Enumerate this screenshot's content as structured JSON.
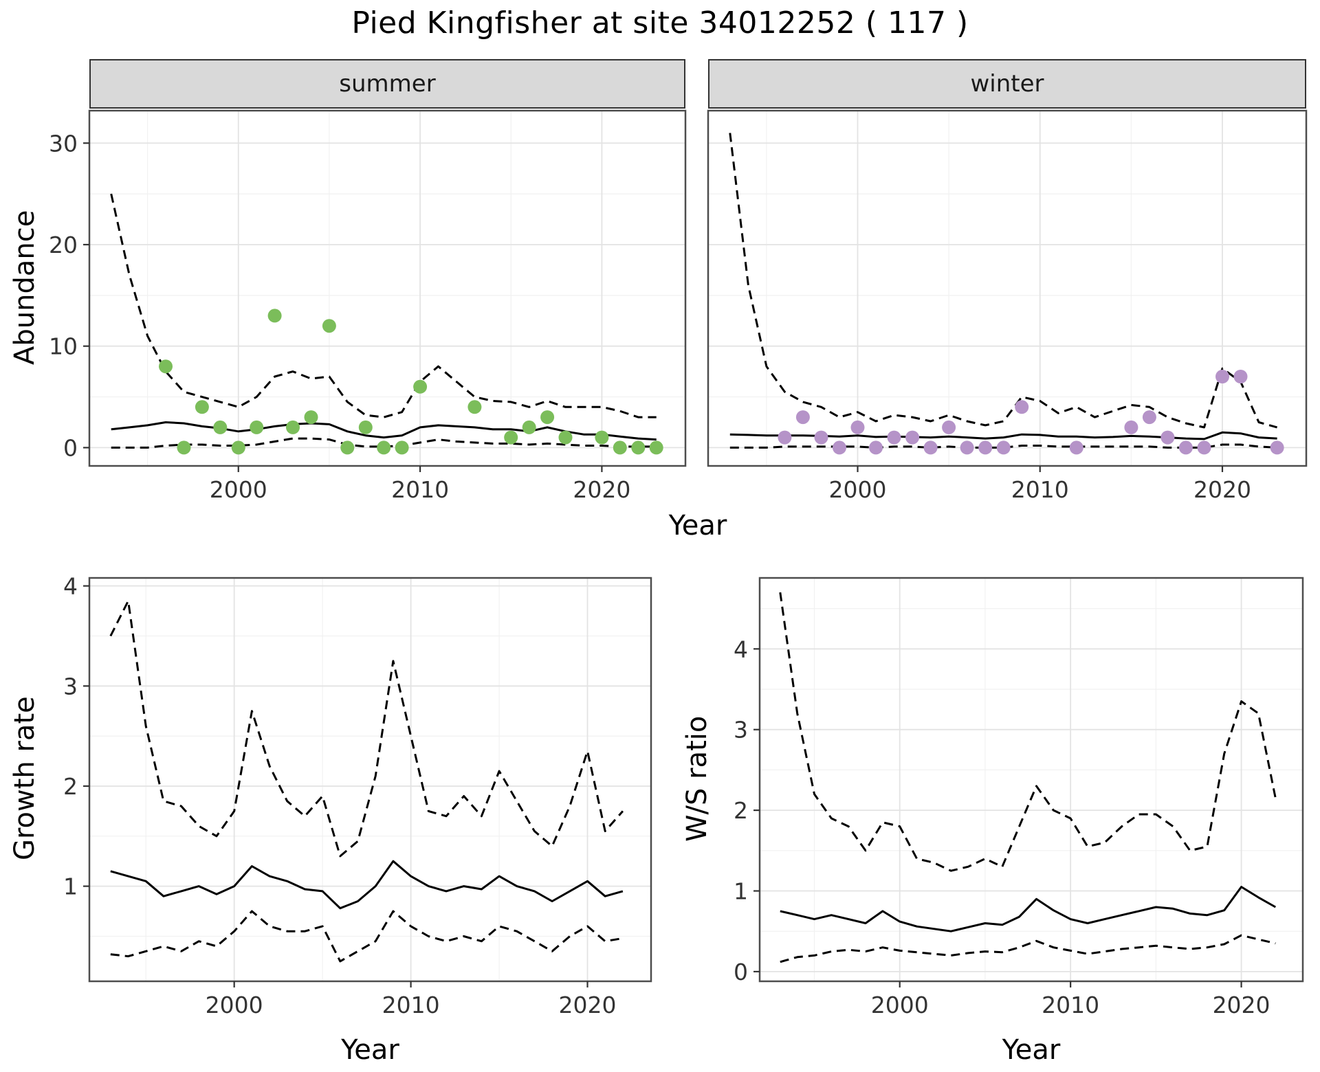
{
  "title": "Pied Kingfisher at site 34012252 ( 117 )",
  "colors": {
    "summer_points": "#7bbd5a",
    "winter_points": "#b593c8",
    "line": "#000000",
    "strip_background": "#d9d9d9",
    "grid_major": "#e3e3e3",
    "grid_minor": "#f1f1f1",
    "panel_border": "#4d4d4d",
    "background": "#ffffff"
  },
  "chart_data": [
    {
      "id": "abundance-summer",
      "type": "line+scatter",
      "facet": "summer",
      "xlabel": "Year",
      "ylabel": "Abundance",
      "xlim": [
        1991.8,
        2024.6
      ],
      "ylim": [
        -1.8,
        33.2
      ],
      "xticks": [
        2000,
        2010,
        2020
      ],
      "yticks": [
        0,
        10,
        20,
        30
      ],
      "xminor": [
        1995,
        2005,
        2015
      ],
      "yminor": [
        5,
        15,
        25
      ],
      "x": [
        1993,
        1994,
        1995,
        1996,
        1997,
        1998,
        1999,
        2000,
        2001,
        2002,
        2003,
        2004,
        2005,
        2006,
        2007,
        2008,
        2009,
        2010,
        2011,
        2012,
        2013,
        2014,
        2015,
        2016,
        2017,
        2018,
        2019,
        2020,
        2021,
        2022,
        2023
      ],
      "series": [
        {
          "name": "upper-ci",
          "style": "dashed",
          "y": [
            25,
            17,
            11,
            7.5,
            5.5,
            5,
            4.5,
            4,
            5,
            7,
            7.5,
            6.8,
            7,
            4.5,
            3.2,
            3,
            3.5,
            6.5,
            8,
            6.5,
            5,
            4.6,
            4.5,
            4,
            4.6,
            4,
            4,
            4,
            3.6,
            3,
            3
          ]
        },
        {
          "name": "fit",
          "style": "solid",
          "y": [
            1.8,
            2.0,
            2.2,
            2.5,
            2.4,
            2.1,
            1.9,
            1.6,
            1.8,
            2.1,
            2.3,
            2.4,
            2.3,
            1.6,
            1.2,
            1.0,
            1.2,
            2.0,
            2.2,
            2.1,
            2.0,
            1.8,
            1.8,
            1.6,
            2.0,
            1.6,
            1.3,
            1.3,
            1.1,
            0.9,
            0.8
          ]
        },
        {
          "name": "lower-ci",
          "style": "dashed",
          "y": [
            0,
            0,
            0,
            0.2,
            0.3,
            0.3,
            0.2,
            0.2,
            0.3,
            0.6,
            0.9,
            0.9,
            0.8,
            0.3,
            0.1,
            0.1,
            0.2,
            0.5,
            0.8,
            0.6,
            0.5,
            0.4,
            0.4,
            0.3,
            0.4,
            0.3,
            0.2,
            0.2,
            0.1,
            0.1,
            0.1
          ]
        },
        {
          "name": "observed-counts",
          "style": "points",
          "color": "#7bbd5a",
          "x": [
            1996,
            1997,
            1998,
            1999,
            2000,
            2001,
            2002,
            2003,
            2004,
            2005,
            2006,
            2007,
            2008,
            2009,
            2010,
            2013,
            2015,
            2016,
            2017,
            2018,
            2020,
            2021,
            2022,
            2023
          ],
          "y": [
            8,
            0,
            4,
            2,
            0,
            2,
            13,
            2,
            3,
            12,
            0,
            2,
            0,
            0,
            6,
            4,
            1,
            2,
            3,
            1,
            1,
            0,
            0,
            0
          ]
        }
      ]
    },
    {
      "id": "abundance-winter",
      "type": "line+scatter",
      "facet": "winter",
      "xlabel": "Year",
      "ylabel": "Abundance",
      "xlim": [
        1991.8,
        2024.6
      ],
      "ylim": [
        -1.8,
        33.2
      ],
      "xticks": [
        2000,
        2010,
        2020
      ],
      "yticks": [
        0,
        10,
        20,
        30
      ],
      "xminor": [
        1995,
        2005,
        2015
      ],
      "yminor": [
        5,
        15,
        25
      ],
      "x": [
        1993,
        1994,
        1995,
        1996,
        1997,
        1998,
        1999,
        2000,
        2001,
        2002,
        2003,
        2004,
        2005,
        2006,
        2007,
        2008,
        2009,
        2010,
        2011,
        2012,
        2013,
        2014,
        2015,
        2016,
        2017,
        2018,
        2019,
        2020,
        2021,
        2022,
        2023
      ],
      "series": [
        {
          "name": "upper-ci",
          "style": "dashed",
          "y": [
            31,
            16,
            8,
            5.5,
            4.5,
            4,
            3,
            3.5,
            2.6,
            3.2,
            3,
            2.6,
            3.2,
            2.6,
            2.2,
            2.6,
            5,
            4.6,
            3.4,
            4,
            3,
            3.6,
            4.2,
            4,
            3,
            2.4,
            2,
            7.8,
            6.5,
            2.5,
            2
          ]
        },
        {
          "name": "fit",
          "style": "solid",
          "y": [
            1.3,
            1.25,
            1.2,
            1.2,
            1.2,
            1.15,
            1.1,
            1.2,
            1.05,
            1.1,
            1.05,
            1.0,
            1.1,
            1.0,
            0.9,
            1.0,
            1.3,
            1.25,
            1.1,
            1.1,
            1.0,
            1.05,
            1.15,
            1.1,
            1.0,
            0.9,
            0.85,
            1.5,
            1.4,
            1.0,
            0.9
          ]
        },
        {
          "name": "lower-ci",
          "style": "dashed",
          "y": [
            0,
            0,
            0,
            0.1,
            0.1,
            0.1,
            0.1,
            0.1,
            0,
            0.1,
            0.1,
            0,
            0.1,
            0,
            0,
            0,
            0.2,
            0.2,
            0.1,
            0.1,
            0.1,
            0.1,
            0.1,
            0.1,
            0,
            0,
            0,
            0.3,
            0.3,
            0.1,
            0
          ]
        },
        {
          "name": "observed-counts",
          "style": "points",
          "color": "#b593c8",
          "x": [
            1996,
            1997,
            1998,
            1999,
            2000,
            2001,
            2002,
            2003,
            2004,
            2005,
            2006,
            2007,
            2008,
            2009,
            2012,
            2015,
            2016,
            2017,
            2018,
            2019,
            2020,
            2021,
            2023
          ],
          "y": [
            1,
            3,
            1,
            0,
            2,
            0,
            1,
            1,
            0,
            2,
            0,
            0,
            0,
            4,
            0,
            2,
            3,
            1,
            0,
            0,
            7,
            7,
            0
          ]
        }
      ]
    },
    {
      "id": "growth-rate",
      "type": "line",
      "facet": "",
      "xlabel": "Year",
      "ylabel": "Growth rate",
      "xlim": [
        1991.8,
        2023.6
      ],
      "ylim": [
        0.05,
        4.08
      ],
      "xticks": [
        2000,
        2010,
        2020
      ],
      "yticks": [
        1,
        2,
        3,
        4
      ],
      "xminor": [
        1995,
        2005,
        2015
      ],
      "yminor": [
        0.5,
        1.5,
        2.5,
        3.5
      ],
      "x": [
        1993,
        1994,
        1995,
        1996,
        1997,
        1998,
        1999,
        2000,
        2001,
        2002,
        2003,
        2004,
        2005,
        2006,
        2007,
        2008,
        2009,
        2010,
        2011,
        2012,
        2013,
        2014,
        2015,
        2016,
        2017,
        2018,
        2019,
        2020,
        2021,
        2022
      ],
      "series": [
        {
          "name": "upper-ci",
          "style": "dashed",
          "y": [
            3.5,
            3.85,
            2.6,
            1.85,
            1.8,
            1.6,
            1.5,
            1.75,
            2.75,
            2.2,
            1.85,
            1.7,
            1.9,
            1.3,
            1.45,
            2.1,
            3.25,
            2.5,
            1.75,
            1.7,
            1.9,
            1.7,
            2.15,
            1.85,
            1.55,
            1.4,
            1.8,
            2.35,
            1.55,
            1.75
          ]
        },
        {
          "name": "fit",
          "style": "solid",
          "y": [
            1.15,
            1.1,
            1.05,
            0.9,
            0.95,
            1.0,
            0.92,
            1.0,
            1.2,
            1.1,
            1.05,
            0.97,
            0.95,
            0.78,
            0.85,
            1.0,
            1.25,
            1.1,
            1.0,
            0.95,
            1.0,
            0.97,
            1.1,
            1.0,
            0.95,
            0.85,
            0.95,
            1.05,
            0.9,
            0.95
          ]
        },
        {
          "name": "lower-ci",
          "style": "dashed",
          "y": [
            0.32,
            0.3,
            0.35,
            0.4,
            0.35,
            0.45,
            0.4,
            0.55,
            0.75,
            0.6,
            0.55,
            0.55,
            0.6,
            0.25,
            0.35,
            0.45,
            0.75,
            0.6,
            0.5,
            0.45,
            0.5,
            0.45,
            0.6,
            0.55,
            0.45,
            0.35,
            0.5,
            0.6,
            0.45,
            0.48
          ]
        }
      ]
    },
    {
      "id": "ws-ratio",
      "type": "line",
      "facet": "",
      "xlabel": "Year",
      "ylabel": "W/S ratio",
      "xlim": [
        1991.8,
        2023.6
      ],
      "ylim": [
        -0.12,
        4.88
      ],
      "xticks": [
        2000,
        2010,
        2020
      ],
      "yticks": [
        0,
        1,
        2,
        3,
        4
      ],
      "xminor": [
        1995,
        2005,
        2015
      ],
      "yminor": [
        0.5,
        1.5,
        2.5,
        3.5,
        4.5
      ],
      "x": [
        1993,
        1994,
        1995,
        1996,
        1997,
        1998,
        1999,
        2000,
        2001,
        2002,
        2003,
        2004,
        2005,
        2006,
        2007,
        2008,
        2009,
        2010,
        2011,
        2012,
        2013,
        2014,
        2015,
        2016,
        2017,
        2018,
        2019,
        2020,
        2021,
        2022
      ],
      "series": [
        {
          "name": "upper-ci",
          "style": "dashed",
          "y": [
            4.7,
            3.2,
            2.2,
            1.9,
            1.8,
            1.5,
            1.85,
            1.8,
            1.4,
            1.35,
            1.25,
            1.3,
            1.4,
            1.3,
            1.8,
            2.3,
            2.0,
            1.9,
            1.55,
            1.6,
            1.8,
            1.95,
            1.95,
            1.8,
            1.5,
            1.55,
            2.7,
            3.35,
            3.2,
            2.15
          ]
        },
        {
          "name": "fit",
          "style": "solid",
          "y": [
            0.75,
            0.7,
            0.65,
            0.7,
            0.65,
            0.6,
            0.75,
            0.62,
            0.56,
            0.53,
            0.5,
            0.55,
            0.6,
            0.58,
            0.68,
            0.9,
            0.76,
            0.65,
            0.6,
            0.65,
            0.7,
            0.75,
            0.8,
            0.78,
            0.72,
            0.7,
            0.76,
            1.05,
            0.92,
            0.8
          ]
        },
        {
          "name": "lower-ci",
          "style": "dashed",
          "y": [
            0.12,
            0.18,
            0.2,
            0.25,
            0.27,
            0.25,
            0.3,
            0.26,
            0.24,
            0.22,
            0.2,
            0.23,
            0.25,
            0.24,
            0.3,
            0.38,
            0.3,
            0.26,
            0.22,
            0.25,
            0.28,
            0.3,
            0.32,
            0.3,
            0.28,
            0.3,
            0.34,
            0.45,
            0.4,
            0.35
          ]
        }
      ]
    }
  ]
}
